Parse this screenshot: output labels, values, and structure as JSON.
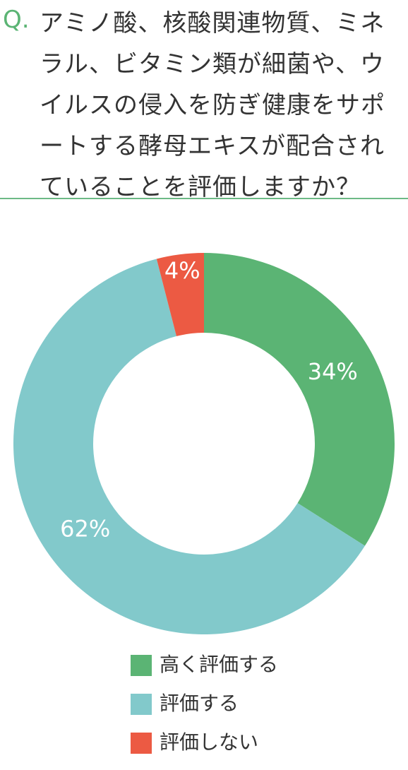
{
  "question": {
    "prefix": "Q.",
    "text": "アミノ酸、核酸関連物質、ミネラル、ビタミン類が細菌や、ウイルスの侵入を防ぎ健康をサポートする酵母エキスが配合されていることを評価しますか？"
  },
  "chart_data": {
    "type": "donut",
    "categories": [
      "高く評価する",
      "評価する",
      "評価しない"
    ],
    "values": [
      34,
      62,
      4
    ],
    "value_labels": [
      "34%",
      "62%",
      "4%"
    ],
    "colors": [
      "#5bb474",
      "#82c9cb",
      "#ec5a43"
    ]
  }
}
